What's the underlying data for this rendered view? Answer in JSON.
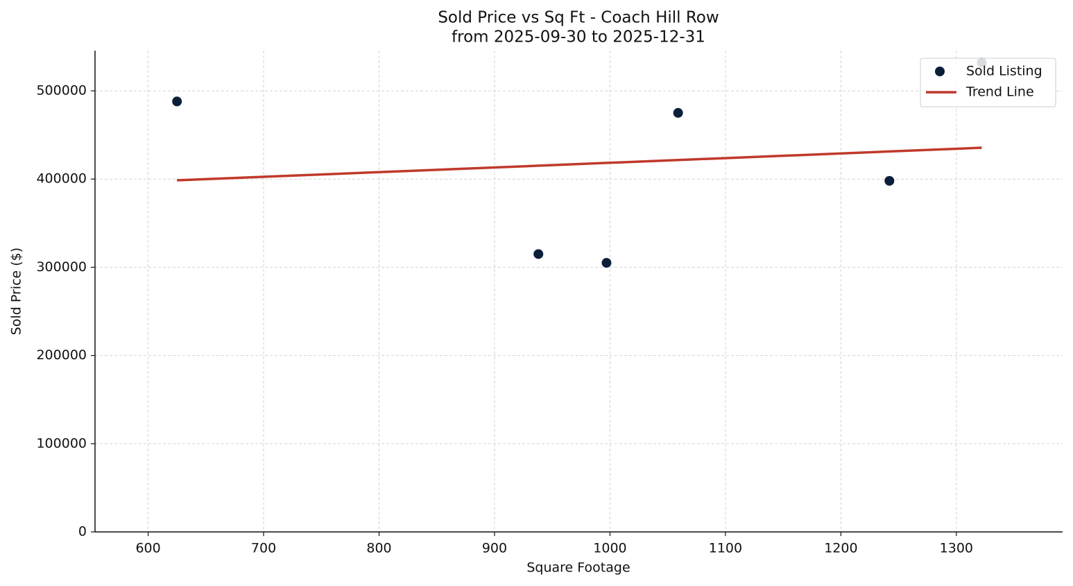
{
  "chart_data": {
    "type": "scatter",
    "title": "Sold Price vs Sq Ft - Coach Hill Row",
    "subtitle": "from 2025-09-30 to 2025-12-31",
    "x_label": "Square Footage",
    "y_label": "Sold Price ($)",
    "xlim": [
      554,
      1392
    ],
    "xticks": [
      600,
      700,
      800,
      900,
      1000,
      1100,
      1200,
      1300
    ],
    "ylim": [
      0,
      545600
    ],
    "yticks": [
      0,
      100000,
      200000,
      300000,
      400000,
      500000
    ],
    "grid": true,
    "legend": "upper right",
    "series": [
      {
        "name": "Sold Listing",
        "type": "scatter",
        "color": "#0b1f3a",
        "x": [
          625,
          938,
          997,
          1059,
          1242,
          1322
        ],
        "values": [
          488000,
          315000,
          305000,
          475000,
          398000,
          532000
        ]
      },
      {
        "name": "Trend Line",
        "type": "line",
        "color": "#c0392b",
        "x": [
          625,
          1322
        ],
        "values": [
          398600,
          435500
        ]
      }
    ]
  }
}
